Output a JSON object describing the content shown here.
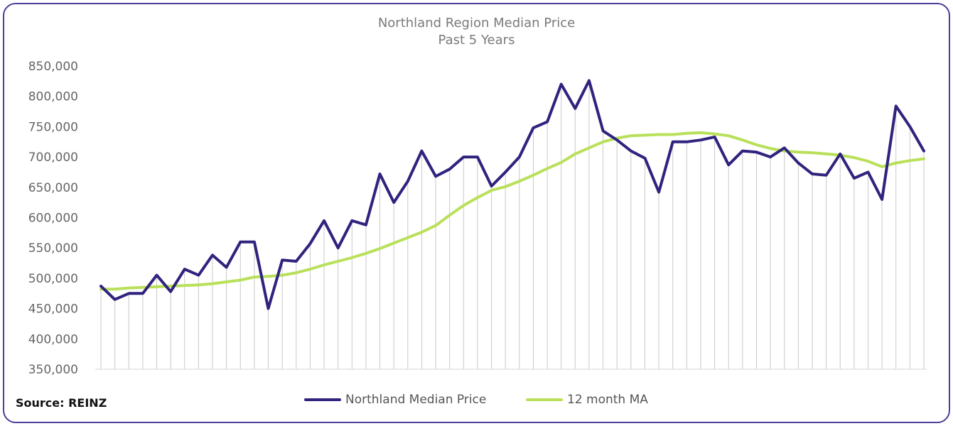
{
  "colors": {
    "frame": "#4b3f9a",
    "median_line": "#2f237e",
    "ma_line": "#b9e05a",
    "drop_lines": "#c9c9c9",
    "axis_text": "#666666"
  },
  "source_text": "Source: REINZ",
  "chart_data": {
    "type": "line",
    "title": "Northland Region Median Price",
    "subtitle": "Past 5 Years",
    "xlabel": "",
    "ylabel": "",
    "ylim": [
      350000,
      850000
    ],
    "yticks": [
      850000,
      800000,
      750000,
      700000,
      650000,
      600000,
      550000,
      500000,
      450000,
      400000,
      350000
    ],
    "ytick_labels": [
      "850,000",
      "800,000",
      "750,000",
      "700,000",
      "650,000",
      "600,000",
      "550,000",
      "500,000",
      "450,000",
      "400,000",
      "350,000"
    ],
    "grid": false,
    "drop_lines": true,
    "legend_position": "bottom",
    "series": [
      {
        "name": "Northland Median Price",
        "values": [
          487000,
          465000,
          475000,
          475000,
          505000,
          478000,
          515000,
          505000,
          538000,
          518000,
          560000,
          560000,
          450000,
          530000,
          528000,
          557000,
          595000,
          550000,
          595000,
          588000,
          672000,
          625000,
          660000,
          710000,
          668000,
          680000,
          700000,
          700000,
          652000,
          675000,
          700000,
          748000,
          758000,
          820000,
          780000,
          826000,
          743000,
          728000,
          710000,
          698000,
          642000,
          725000,
          725000,
          728000,
          733000,
          687000,
          710000,
          708000,
          700000,
          715000,
          690000,
          672000,
          670000,
          705000,
          665000,
          675000,
          630000,
          784000,
          750000,
          710000
        ]
      },
      {
        "name": "12 month MA",
        "values": [
          482000,
          482000,
          484000,
          485000,
          486000,
          487000,
          488000,
          489000,
          491000,
          494000,
          497000,
          502000,
          503000,
          505000,
          509000,
          515000,
          522000,
          528000,
          534000,
          541000,
          549000,
          558000,
          567000,
          576000,
          587000,
          604000,
          620000,
          633000,
          645000,
          651000,
          660000,
          670000,
          681000,
          691000,
          705000,
          715000,
          725000,
          731000,
          735000,
          736000,
          737000,
          737000,
          739000,
          740000,
          738000,
          735000,
          728000,
          720000,
          714000,
          710000,
          708000,
          707000,
          705000,
          703000,
          699000,
          693000,
          684000,
          690000,
          694000,
          697000
        ]
      }
    ]
  }
}
